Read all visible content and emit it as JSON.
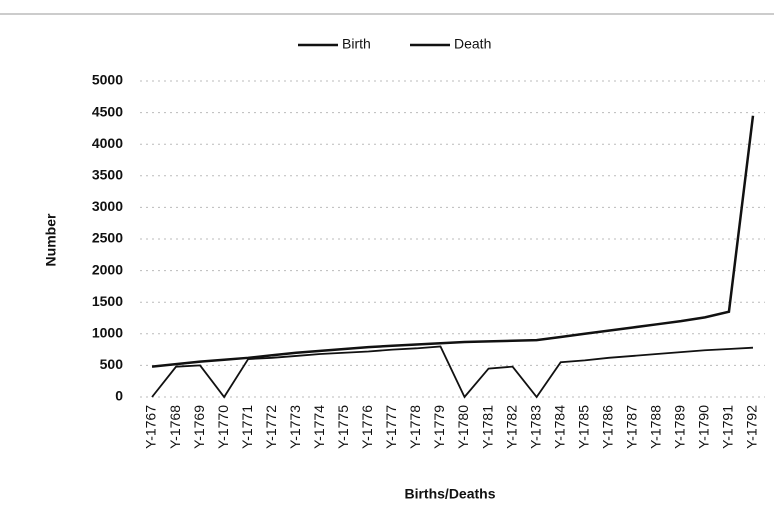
{
  "chart_data": {
    "type": "line",
    "x_label": "Births/Deaths",
    "y_label": "Number",
    "categories": [
      "Y-1767",
      "Y-1768",
      "Y-1769",
      "Y-1770",
      "Y-1771",
      "Y-1772",
      "Y-1773",
      "Y-1774",
      "Y-1775",
      "Y-1776",
      "Y-1777",
      "Y-1778",
      "Y-1779",
      "Y-1780",
      "Y-1781",
      "Y-1782",
      "Y-1783",
      "Y-1784",
      "Y-1785",
      "Y-1786",
      "Y-1787",
      "Y-1788",
      "Y-1789",
      "Y-1790",
      "Y-1791",
      "Y-1792"
    ],
    "series": [
      {
        "name": "Birth",
        "color": "#111111",
        "values": [
          0,
          480,
          500,
          0,
          600,
          620,
          650,
          680,
          700,
          720,
          750,
          770,
          800,
          0,
          450,
          480,
          0,
          550,
          580,
          620,
          650,
          680,
          710,
          740,
          760,
          780
        ]
      },
      {
        "name": "Death",
        "color": "#111111",
        "values": [
          480,
          520,
          560,
          590,
          620,
          660,
          700,
          730,
          760,
          790,
          810,
          830,
          850,
          870,
          880,
          890,
          900,
          950,
          1000,
          1050,
          1100,
          1150,
          1200,
          1260,
          1350,
          4450
        ]
      }
    ],
    "ylim": [
      0,
      5000
    ],
    "yticks": [
      0,
      500,
      1000,
      1500,
      2000,
      2500,
      3000,
      3500,
      4000,
      4500,
      5000
    ],
    "grid": true,
    "legend": "top"
  }
}
